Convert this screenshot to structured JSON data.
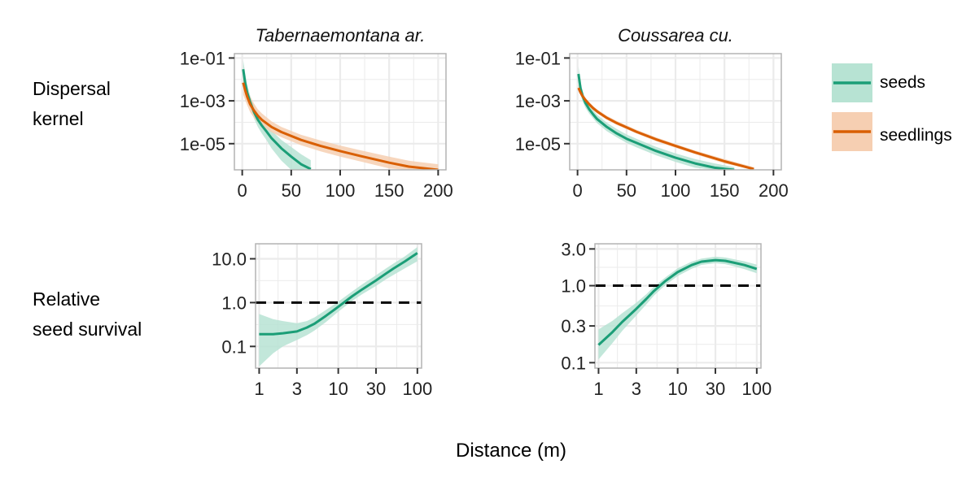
{
  "row_labels": [
    {
      "lines": [
        "Dispersal",
        "kernel"
      ]
    },
    {
      "lines": [
        "Relative",
        "seed survival"
      ]
    }
  ],
  "xlabel": "Distance (m)",
  "legend": [
    {
      "label": "seeds",
      "color": "#1b9e77",
      "fill": "#b7e3d3"
    },
    {
      "label": "seedlings",
      "color": "#d95f02",
      "fill": "#f6cfb2"
    }
  ],
  "colors": {
    "seeds": "#1b9e77",
    "seedlings": "#d95f02",
    "seeds_band": "#b7e3d3",
    "seedlings_band": "#f6cfb2",
    "grid": "#ebebeb",
    "axis": "#b3b3b3"
  },
  "chart_data": [
    {
      "panel": "kernel-tabernaemontana",
      "type": "line",
      "title": "Tabernaemontana ar.",
      "ylog": true,
      "xlim": [
        -8,
        208
      ],
      "ylim": [
        6e-07,
        0.16
      ],
      "xticks": [
        0,
        50,
        100,
        150,
        200
      ],
      "xticklabels": [
        "0",
        "50",
        "100",
        "150",
        "200"
      ],
      "yticks": [
        0.1,
        0.001,
        1e-05
      ],
      "yticklabels": [
        "1e-01",
        "1e-03",
        "1e-05"
      ],
      "grid": true,
      "series": [
        {
          "name": "seeds",
          "color": "#1b9e77",
          "band": "#b7e3d3",
          "x": [
            1,
            3,
            5,
            8,
            12,
            16,
            20,
            25,
            30,
            40,
            50,
            60,
            70
          ],
          "y": [
            0.03,
            0.007,
            0.0025,
            0.0009,
            0.0003,
            0.00013,
            7e-05,
            3.6e-05,
            1.8e-05,
            6e-06,
            2.5e-06,
            1.1e-06,
            6.5e-07
          ],
          "lo": [
            0.011,
            0.003,
            0.0012,
            0.00045,
            0.00015,
            6e-05,
            3e-05,
            1.4e-05,
            6e-06,
            1.6e-06,
            6e-07,
            5e-07,
            5e-07
          ],
          "hi": [
            0.08,
            0.02,
            0.006,
            0.0018,
            0.0006,
            0.00027,
            0.00015,
            8e-05,
            4e-05,
            1.5e-05,
            7e-06,
            3.2e-06,
            1.7e-06
          ]
        },
        {
          "name": "seedlings",
          "color": "#d95f02",
          "band": "#f6cfb2",
          "x": [
            1,
            3,
            5,
            8,
            12,
            16,
            20,
            30,
            40,
            60,
            80,
            100,
            120,
            150,
            170,
            200
          ],
          "y": [
            0.007,
            0.0032,
            0.0016,
            0.0007,
            0.00035,
            0.0002,
            0.00013,
            6e-05,
            3.5e-05,
            1.5e-05,
            7.8e-06,
            4.5e-06,
            2.7e-06,
            1.3e-06,
            8.5e-07,
            6e-07
          ],
          "lo": [
            0.002,
            0.0011,
            0.00065,
            0.0003,
            0.00016,
            0.0001,
            6.8e-05,
            3.4e-05,
            2e-05,
            8.5e-06,
            4.4e-06,
            2.5e-06,
            1.5e-06,
            7e-07,
            5e-07,
            5e-07
          ],
          "hi": [
            0.02,
            0.009,
            0.004,
            0.0016,
            0.00075,
            0.0004,
            0.00026,
            0.00011,
            6e-05,
            2.6e-05,
            1.4e-05,
            8.2e-06,
            5e-06,
            2.5e-06,
            1.6e-06,
            1.1e-06
          ]
        }
      ]
    },
    {
      "panel": "kernel-coussarea",
      "type": "line",
      "title": "Coussarea cu.",
      "ylog": true,
      "xlim": [
        -8,
        208
      ],
      "ylim": [
        6e-07,
        0.16
      ],
      "xticks": [
        0,
        50,
        100,
        150,
        200
      ],
      "xticklabels": [
        "0",
        "50",
        "100",
        "150",
        "200"
      ],
      "yticks": [
        0.1,
        0.001,
        1e-05
      ],
      "yticklabels": [
        "1e-01",
        "1e-03",
        "1e-05"
      ],
      "grid": true,
      "series": [
        {
          "name": "seeds",
          "color": "#1b9e77",
          "band": "#b7e3d3",
          "x": [
            1,
            3,
            5,
            8,
            12,
            16,
            20,
            30,
            40,
            50,
            60,
            80,
            100,
            120,
            140,
            160
          ],
          "y": [
            0.018,
            0.004,
            0.0018,
            0.0008,
            0.0004,
            0.00023,
            0.00014,
            6e-05,
            3e-05,
            1.7e-05,
            1.1e-05,
            4.6e-06,
            2.2e-06,
            1.2e-06,
            7.5e-07,
            6e-07
          ],
          "lo": [
            0.007,
            0.002,
            0.001,
            0.00048,
            0.00025,
            0.00015,
            9e-05,
            3.8e-05,
            2e-05,
            1.1e-05,
            6.8e-06,
            2.9e-06,
            1.4e-06,
            7.5e-07,
            5e-07,
            5e-07
          ],
          "hi": [
            0.04,
            0.008,
            0.0032,
            0.0013,
            0.00065,
            0.00036,
            0.00022,
            9.5e-05,
            4.8e-05,
            2.7e-05,
            1.7e-05,
            7.2e-06,
            3.5e-06,
            1.9e-06,
            1.2e-06,
            8e-07
          ]
        },
        {
          "name": "seedlings",
          "color": "#d95f02",
          "band": "#f6cfb2",
          "x": [
            1,
            3,
            5,
            8,
            12,
            16,
            20,
            30,
            40,
            60,
            80,
            100,
            120,
            150,
            180
          ],
          "y": [
            0.004,
            0.0025,
            0.0017,
            0.0011,
            0.00068,
            0.00045,
            0.00032,
            0.00016,
            9.2e-05,
            3.6e-05,
            1.6e-05,
            7.8e-06,
            3.9e-06,
            1.5e-06,
            6.5e-07
          ],
          "lo": [
            0.0028,
            0.0019,
            0.0013,
            0.00085,
            0.00054,
            0.00036,
            0.00026,
            0.00013,
            7.5e-05,
            3e-05,
            1.3e-05,
            6.4e-06,
            3.2e-06,
            1.2e-06,
            5e-07
          ],
          "hi": [
            0.0058,
            0.0034,
            0.0022,
            0.0014,
            0.00086,
            0.00057,
            0.0004,
            0.0002,
            0.000115,
            4.5e-05,
            2e-05,
            9.6e-06,
            4.8e-06,
            1.9e-06,
            8e-07
          ]
        }
      ]
    },
    {
      "panel": "survival-tabernaemontana",
      "type": "line",
      "xlog": true,
      "ylog": true,
      "xlim": [
        0.9,
        113
      ],
      "ylim": [
        0.032,
        22
      ],
      "xticks": [
        1,
        3,
        10,
        30,
        100
      ],
      "xticklabels": [
        "1",
        "3",
        "10",
        "30",
        "100"
      ],
      "yticks": [
        0.1,
        1,
        10
      ],
      "yticklabels": [
        "0.1",
        "1.0",
        "10.0"
      ],
      "grid": true,
      "reference_line": 1.0,
      "series": [
        {
          "name": "seeds",
          "color": "#1b9e77",
          "band": "#b7e3d3",
          "x": [
            1,
            1.5,
            2,
            3,
            4,
            5,
            7,
            10,
            15,
            20,
            30,
            40,
            50,
            70,
            100
          ],
          "y": [
            0.19,
            0.19,
            0.2,
            0.22,
            0.27,
            0.33,
            0.5,
            0.8,
            1.4,
            2.0,
            3.2,
            4.6,
            6.0,
            8.8,
            13.5
          ],
          "lo": [
            0.035,
            0.07,
            0.1,
            0.14,
            0.18,
            0.23,
            0.36,
            0.62,
            1.1,
            1.55,
            2.4,
            3.4,
            4.3,
            6.1,
            8.8
          ],
          "hi": [
            0.55,
            0.42,
            0.38,
            0.34,
            0.38,
            0.46,
            0.68,
            1.05,
            1.8,
            2.6,
            4.2,
            6.0,
            7.8,
            11.5,
            18.5
          ]
        }
      ]
    },
    {
      "panel": "survival-coussarea",
      "type": "line",
      "xlog": true,
      "ylog": true,
      "xlim": [
        0.9,
        113
      ],
      "ylim": [
        0.085,
        3.5
      ],
      "xticks": [
        1,
        3,
        10,
        30,
        100
      ],
      "xticklabels": [
        "1",
        "3",
        "10",
        "30",
        "100"
      ],
      "yticks": [
        0.1,
        0.3,
        1,
        3
      ],
      "yticklabels": [
        "0.1",
        "0.3",
        "1.0",
        "3.0"
      ],
      "grid": true,
      "reference_line": 1.0,
      "series": [
        {
          "name": "seeds",
          "color": "#1b9e77",
          "band": "#b7e3d3",
          "x": [
            1,
            1.5,
            2,
            3,
            4,
            5,
            7,
            10,
            15,
            20,
            30,
            40,
            50,
            70,
            100
          ],
          "y": [
            0.17,
            0.25,
            0.34,
            0.5,
            0.67,
            0.85,
            1.15,
            1.5,
            1.85,
            2.05,
            2.15,
            2.1,
            2.0,
            1.85,
            1.65
          ],
          "lo": [
            0.11,
            0.18,
            0.26,
            0.41,
            0.57,
            0.74,
            1.02,
            1.33,
            1.66,
            1.86,
            1.96,
            1.9,
            1.8,
            1.64,
            1.45
          ],
          "hi": [
            0.27,
            0.35,
            0.44,
            0.6,
            0.77,
            0.97,
            1.28,
            1.68,
            2.05,
            2.25,
            2.38,
            2.32,
            2.22,
            2.07,
            1.88
          ]
        }
      ]
    }
  ]
}
